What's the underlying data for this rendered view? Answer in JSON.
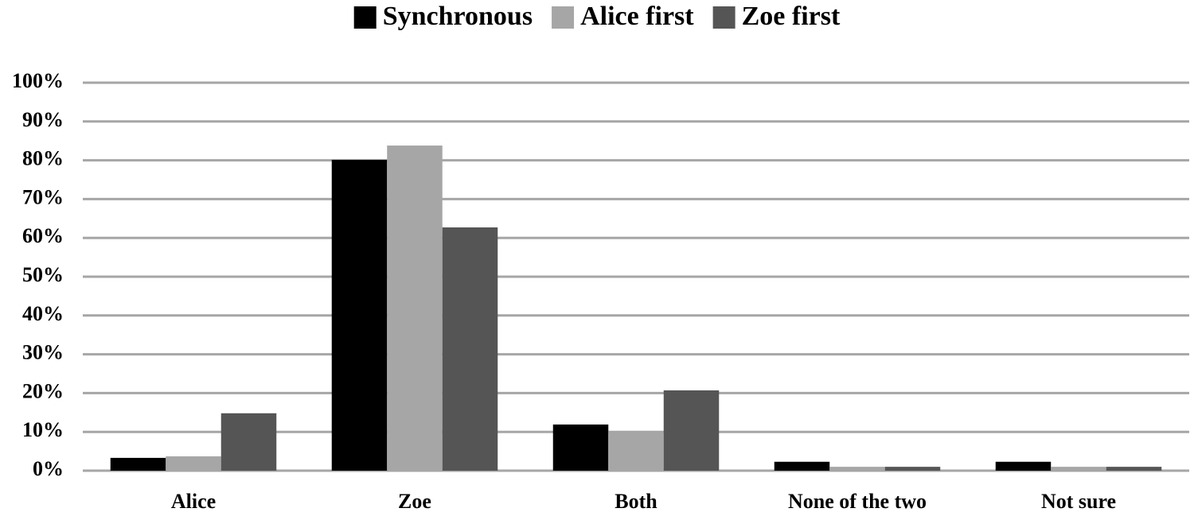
{
  "chart_data": {
    "type": "bar",
    "categories": [
      "Alice",
      "Zoe",
      "Both",
      "None of the two",
      "Not sure"
    ],
    "series": [
      {
        "name": "Synchronous",
        "color": "#000000",
        "values": [
          3.3,
          80.1,
          11.9,
          2.3,
          2.3
        ]
      },
      {
        "name": "Alice first",
        "color": "#a6a6a6",
        "values": [
          3.7,
          83.8,
          10.2,
          1.0,
          1.0
        ]
      },
      {
        "name": "Zoe first",
        "color": "#555555",
        "values": [
          14.8,
          62.7,
          20.7,
          1.0,
          1.0
        ]
      }
    ],
    "ylim": [
      0,
      100
    ],
    "yticks": [
      {
        "value": 0,
        "label": "0%"
      },
      {
        "value": 10,
        "label": "10%"
      },
      {
        "value": 20,
        "label": "20%"
      },
      {
        "value": 30,
        "label": "30%"
      },
      {
        "value": 40,
        "label": "40%"
      },
      {
        "value": 50,
        "label": "50%"
      },
      {
        "value": 60,
        "label": "60%"
      },
      {
        "value": 70,
        "label": "70%"
      },
      {
        "value": 80,
        "label": "80%"
      },
      {
        "value": 90,
        "label": "90%"
      },
      {
        "value": 100,
        "label": "100%"
      }
    ],
    "grid": true,
    "legend": "top"
  }
}
